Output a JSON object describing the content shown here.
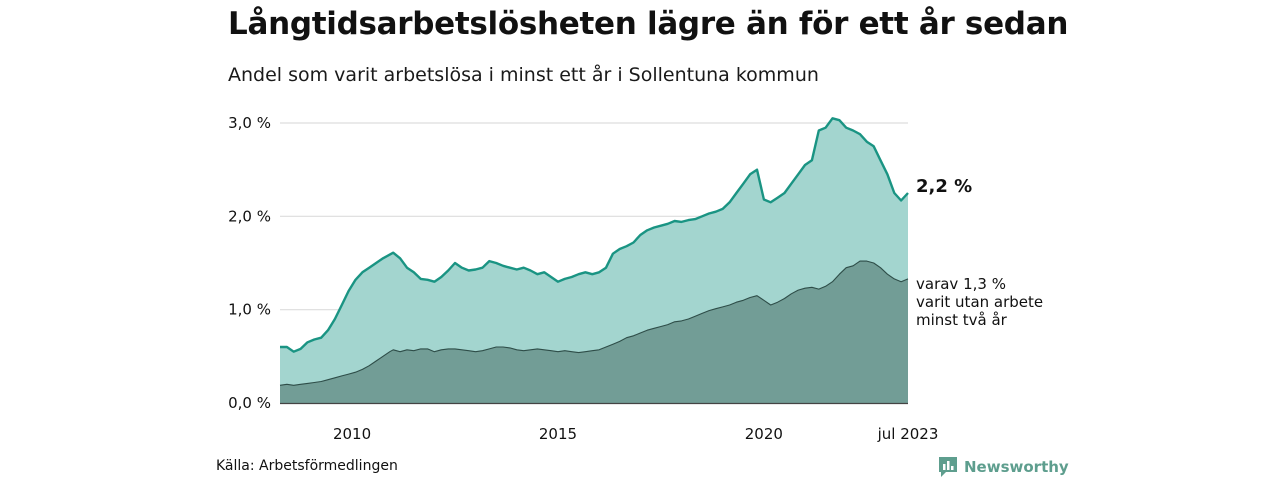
{
  "header": {
    "title": "Långtidsarbetslösheten lägre än för ett år sedan",
    "subtitle": "Andel som varit arbetslösa i minst ett år i Sollentuna kommun"
  },
  "footer": {
    "source": "Källa: Arbetsförmedlingen",
    "brand": "Newsworthy"
  },
  "colors": {
    "total_line": "#1a9483",
    "total_fill": "#a3d5cf",
    "sub_fill": "#729d96",
    "sub_line": "#2e4d48",
    "grid": "#dddddd",
    "brand": "#5e9e8e"
  },
  "chart_data": {
    "type": "area",
    "title": "Långtidsarbetslösheten lägre än för ett år sedan",
    "subtitle": "Andel som varit arbetslösa i minst ett år i Sollentuna kommun",
    "x_ticks": [
      {
        "label": "2010",
        "date": "2010-01"
      },
      {
        "label": "2015",
        "date": "2015-01"
      },
      {
        "label": "2020",
        "date": "2020-01"
      },
      {
        "label": "jul 2023",
        "date": "2023-07"
      }
    ],
    "y_ticks": [
      {
        "label": "0,0 %",
        "value": 0.0
      },
      {
        "label": "1,0 %",
        "value": 1.0
      },
      {
        "label": "2,0 %",
        "value": 2.0
      },
      {
        "label": "3,0 %",
        "value": 3.0
      }
    ],
    "ylim": [
      0,
      3.0
    ],
    "grid": true,
    "end_label_total": "2,2 %",
    "end_label_sub": [
      "varav 1,3 %",
      "varit utan arbete",
      "minst två år"
    ],
    "series": [
      {
        "points": [
          [
            "2008-04",
            0.6
          ],
          [
            "2008-06",
            0.6
          ],
          [
            "2008-08",
            0.55
          ],
          [
            "2008-10",
            0.58
          ],
          [
            "2008-12",
            0.65
          ],
          [
            "2009-02",
            0.68
          ],
          [
            "2009-04",
            0.7
          ],
          [
            "2009-06",
            0.78
          ],
          [
            "2009-08",
            0.9
          ],
          [
            "2009-10",
            1.05
          ],
          [
            "2009-12",
            1.2
          ],
          [
            "2010-02",
            1.32
          ],
          [
            "2010-04",
            1.4
          ],
          [
            "2010-06",
            1.45
          ],
          [
            "2010-08",
            1.5
          ],
          [
            "2010-10",
            1.55
          ],
          [
            "2010-12",
            1.59
          ],
          [
            "2011-01",
            1.61
          ],
          [
            "2011-03",
            1.55
          ],
          [
            "2011-05",
            1.45
          ],
          [
            "2011-07",
            1.4
          ],
          [
            "2011-09",
            1.33
          ],
          [
            "2011-11",
            1.32
          ],
          [
            "2012-01",
            1.3
          ],
          [
            "2012-03",
            1.35
          ],
          [
            "2012-05",
            1.42
          ],
          [
            "2012-07",
            1.5
          ],
          [
            "2012-09",
            1.45
          ],
          [
            "2012-11",
            1.42
          ],
          [
            "2013-01",
            1.43
          ],
          [
            "2013-03",
            1.45
          ],
          [
            "2013-05",
            1.52
          ],
          [
            "2013-07",
            1.5
          ],
          [
            "2013-09",
            1.47
          ],
          [
            "2013-11",
            1.45
          ],
          [
            "2014-01",
            1.43
          ],
          [
            "2014-03",
            1.45
          ],
          [
            "2014-05",
            1.42
          ],
          [
            "2014-07",
            1.38
          ],
          [
            "2014-09",
            1.4
          ],
          [
            "2014-11",
            1.35
          ],
          [
            "2015-01",
            1.3
          ],
          [
            "2015-03",
            1.33
          ],
          [
            "2015-05",
            1.35
          ],
          [
            "2015-07",
            1.38
          ],
          [
            "2015-09",
            1.4
          ],
          [
            "2015-11",
            1.38
          ],
          [
            "2016-01",
            1.4
          ],
          [
            "2016-03",
            1.45
          ],
          [
            "2016-05",
            1.6
          ],
          [
            "2016-07",
            1.65
          ],
          [
            "2016-09",
            1.68
          ],
          [
            "2016-11",
            1.72
          ],
          [
            "2017-01",
            1.8
          ],
          [
            "2017-03",
            1.85
          ],
          [
            "2017-05",
            1.88
          ],
          [
            "2017-07",
            1.9
          ],
          [
            "2017-09",
            1.92
          ],
          [
            "2017-11",
            1.95
          ],
          [
            "2018-01",
            1.94
          ],
          [
            "2018-03",
            1.96
          ],
          [
            "2018-05",
            1.97
          ],
          [
            "2018-07",
            2.0
          ],
          [
            "2018-09",
            2.03
          ],
          [
            "2018-11",
            2.05
          ],
          [
            "2019-01",
            2.08
          ],
          [
            "2019-03",
            2.15
          ],
          [
            "2019-05",
            2.25
          ],
          [
            "2019-07",
            2.35
          ],
          [
            "2019-09",
            2.45
          ],
          [
            "2019-11",
            2.5
          ],
          [
            "2020-01",
            2.18
          ],
          [
            "2020-03",
            2.15
          ],
          [
            "2020-05",
            2.2
          ],
          [
            "2020-07",
            2.25
          ],
          [
            "2020-09",
            2.35
          ],
          [
            "2020-11",
            2.45
          ],
          [
            "2021-01",
            2.55
          ],
          [
            "2021-03",
            2.6
          ],
          [
            "2021-05",
            2.92
          ],
          [
            "2021-07",
            2.95
          ],
          [
            "2021-09",
            3.05
          ],
          [
            "2021-11",
            3.03
          ],
          [
            "2022-01",
            2.95
          ],
          [
            "2022-03",
            2.92
          ],
          [
            "2022-05",
            2.88
          ],
          [
            "2022-07",
            2.8
          ],
          [
            "2022-09",
            2.75
          ],
          [
            "2022-11",
            2.6
          ],
          [
            "2023-01",
            2.45
          ],
          [
            "2023-03",
            2.25
          ],
          [
            "2023-05",
            2.17
          ],
          [
            "2023-07",
            2.25
          ]
        ]
      },
      {
        "points": [
          [
            "2008-04",
            0.19
          ],
          [
            "2008-06",
            0.2
          ],
          [
            "2008-08",
            0.19
          ],
          [
            "2008-10",
            0.2
          ],
          [
            "2008-12",
            0.21
          ],
          [
            "2009-02",
            0.22
          ],
          [
            "2009-04",
            0.23
          ],
          [
            "2009-06",
            0.25
          ],
          [
            "2009-08",
            0.27
          ],
          [
            "2009-10",
            0.29
          ],
          [
            "2009-12",
            0.31
          ],
          [
            "2010-02",
            0.33
          ],
          [
            "2010-04",
            0.36
          ],
          [
            "2010-06",
            0.4
          ],
          [
            "2010-08",
            0.45
          ],
          [
            "2010-10",
            0.5
          ],
          [
            "2010-12",
            0.55
          ],
          [
            "2011-01",
            0.57
          ],
          [
            "2011-03",
            0.55
          ],
          [
            "2011-05",
            0.57
          ],
          [
            "2011-07",
            0.56
          ],
          [
            "2011-09",
            0.58
          ],
          [
            "2011-11",
            0.58
          ],
          [
            "2012-01",
            0.55
          ],
          [
            "2012-03",
            0.57
          ],
          [
            "2012-05",
            0.58
          ],
          [
            "2012-07",
            0.58
          ],
          [
            "2012-09",
            0.57
          ],
          [
            "2012-11",
            0.56
          ],
          [
            "2013-01",
            0.55
          ],
          [
            "2013-03",
            0.56
          ],
          [
            "2013-05",
            0.58
          ],
          [
            "2013-07",
            0.6
          ],
          [
            "2013-09",
            0.6
          ],
          [
            "2013-11",
            0.59
          ],
          [
            "2014-01",
            0.57
          ],
          [
            "2014-03",
            0.56
          ],
          [
            "2014-05",
            0.57
          ],
          [
            "2014-07",
            0.58
          ],
          [
            "2014-09",
            0.57
          ],
          [
            "2014-11",
            0.56
          ],
          [
            "2015-01",
            0.55
          ],
          [
            "2015-03",
            0.56
          ],
          [
            "2015-05",
            0.55
          ],
          [
            "2015-07",
            0.54
          ],
          [
            "2015-09",
            0.55
          ],
          [
            "2015-11",
            0.56
          ],
          [
            "2016-01",
            0.57
          ],
          [
            "2016-03",
            0.6
          ],
          [
            "2016-05",
            0.63
          ],
          [
            "2016-07",
            0.66
          ],
          [
            "2016-09",
            0.7
          ],
          [
            "2016-11",
            0.72
          ],
          [
            "2017-01",
            0.75
          ],
          [
            "2017-03",
            0.78
          ],
          [
            "2017-05",
            0.8
          ],
          [
            "2017-07",
            0.82
          ],
          [
            "2017-09",
            0.84
          ],
          [
            "2017-11",
            0.87
          ],
          [
            "2018-01",
            0.88
          ],
          [
            "2018-03",
            0.9
          ],
          [
            "2018-05",
            0.93
          ],
          [
            "2018-07",
            0.96
          ],
          [
            "2018-09",
            0.99
          ],
          [
            "2018-11",
            1.01
          ],
          [
            "2019-01",
            1.03
          ],
          [
            "2019-03",
            1.05
          ],
          [
            "2019-05",
            1.08
          ],
          [
            "2019-07",
            1.1
          ],
          [
            "2019-09",
            1.13
          ],
          [
            "2019-11",
            1.15
          ],
          [
            "2020-01",
            1.1
          ],
          [
            "2020-03",
            1.05
          ],
          [
            "2020-05",
            1.08
          ],
          [
            "2020-07",
            1.12
          ],
          [
            "2020-09",
            1.17
          ],
          [
            "2020-11",
            1.21
          ],
          [
            "2021-01",
            1.23
          ],
          [
            "2021-03",
            1.24
          ],
          [
            "2021-05",
            1.22
          ],
          [
            "2021-07",
            1.25
          ],
          [
            "2021-09",
            1.3
          ],
          [
            "2021-11",
            1.38
          ],
          [
            "2022-01",
            1.45
          ],
          [
            "2022-03",
            1.47
          ],
          [
            "2022-05",
            1.52
          ],
          [
            "2022-07",
            1.52
          ],
          [
            "2022-09",
            1.5
          ],
          [
            "2022-11",
            1.45
          ],
          [
            "2023-01",
            1.38
          ],
          [
            "2023-03",
            1.33
          ],
          [
            "2023-05",
            1.3
          ],
          [
            "2023-07",
            1.33
          ]
        ]
      }
    ]
  }
}
